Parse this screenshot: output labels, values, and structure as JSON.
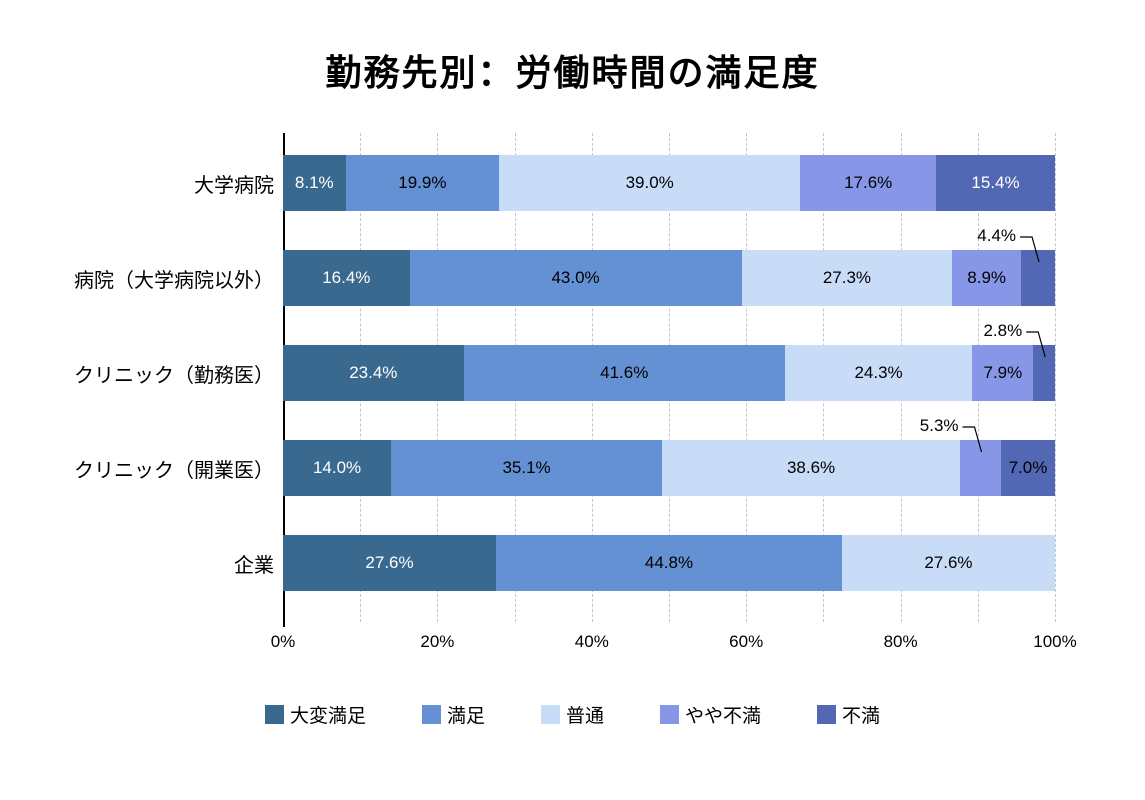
{
  "chart_data": {
    "type": "bar",
    "variant": "horizontal-stacked",
    "title": "勤務先別：労働時間の満足度",
    "x_axis": {
      "min": 0,
      "max": 100,
      "tick_labels": [
        "0%",
        "20%",
        "40%",
        "60%",
        "80%",
        "100%"
      ],
      "gridline_interval": 10,
      "gridline_style": "dashed"
    },
    "legend_position": "bottom",
    "legend": [
      {
        "label": "大変満足",
        "color": "#3A698F"
      },
      {
        "label": "満足",
        "color": "#6491D4"
      },
      {
        "label": "普通",
        "color": "#C9DCF7"
      },
      {
        "label": "やや不満",
        "color": "#8796E6"
      },
      {
        "label": "不満",
        "color": "#5368B4"
      }
    ],
    "categories": [
      "大学病院",
      "病院（大学病院以外）",
      "クリニック（勤務医）",
      "クリニック（開業医）",
      "企業"
    ],
    "rows": [
      {
        "category": "大学病院",
        "segments": [
          {
            "value": 8.1,
            "label": "8.1%",
            "label_style": "white"
          },
          {
            "value": 19.9,
            "label": "19.9%",
            "label_style": "black"
          },
          {
            "value": 39.0,
            "label": "39.0%",
            "label_style": "black"
          },
          {
            "value": 17.6,
            "label": "17.6%",
            "label_style": "black"
          },
          {
            "value": 15.4,
            "label": "15.4%",
            "label_style": "white"
          }
        ]
      },
      {
        "category": "病院（大学病院以外）",
        "segments": [
          {
            "value": 16.4,
            "label": "16.4%",
            "label_style": "white"
          },
          {
            "value": 43.0,
            "label": "43.0%",
            "label_style": "black"
          },
          {
            "value": 27.3,
            "label": "27.3%",
            "label_style": "black"
          },
          {
            "value": 8.9,
            "label": "8.9%",
            "label_style": "black"
          },
          {
            "value": 4.4,
            "label": "4.4%",
            "label_style": "callout"
          }
        ]
      },
      {
        "category": "クリニック（勤務医）",
        "segments": [
          {
            "value": 23.4,
            "label": "23.4%",
            "label_style": "white"
          },
          {
            "value": 41.6,
            "label": "41.6%",
            "label_style": "black"
          },
          {
            "value": 24.3,
            "label": "24.3%",
            "label_style": "black"
          },
          {
            "value": 7.9,
            "label": "7.9%",
            "label_style": "black"
          },
          {
            "value": 2.8,
            "label": "2.8%",
            "label_style": "callout"
          }
        ]
      },
      {
        "category": "クリニック（開業医）",
        "segments": [
          {
            "value": 14.0,
            "label": "14.0%",
            "label_style": "white"
          },
          {
            "value": 35.1,
            "label": "35.1%",
            "label_style": "black"
          },
          {
            "value": 38.6,
            "label": "38.6%",
            "label_style": "black"
          },
          {
            "value": 5.3,
            "label": "5.3%",
            "label_style": "callout"
          },
          {
            "value": 7.0,
            "label": "7.0%",
            "label_style": "black"
          }
        ]
      },
      {
        "category": "企業",
        "segments": [
          {
            "value": 27.6,
            "label": "27.6%",
            "label_style": "white"
          },
          {
            "value": 44.8,
            "label": "44.8%",
            "label_style": "black"
          },
          {
            "value": 27.6,
            "label": "27.6%",
            "label_style": "black"
          }
        ]
      }
    ]
  }
}
